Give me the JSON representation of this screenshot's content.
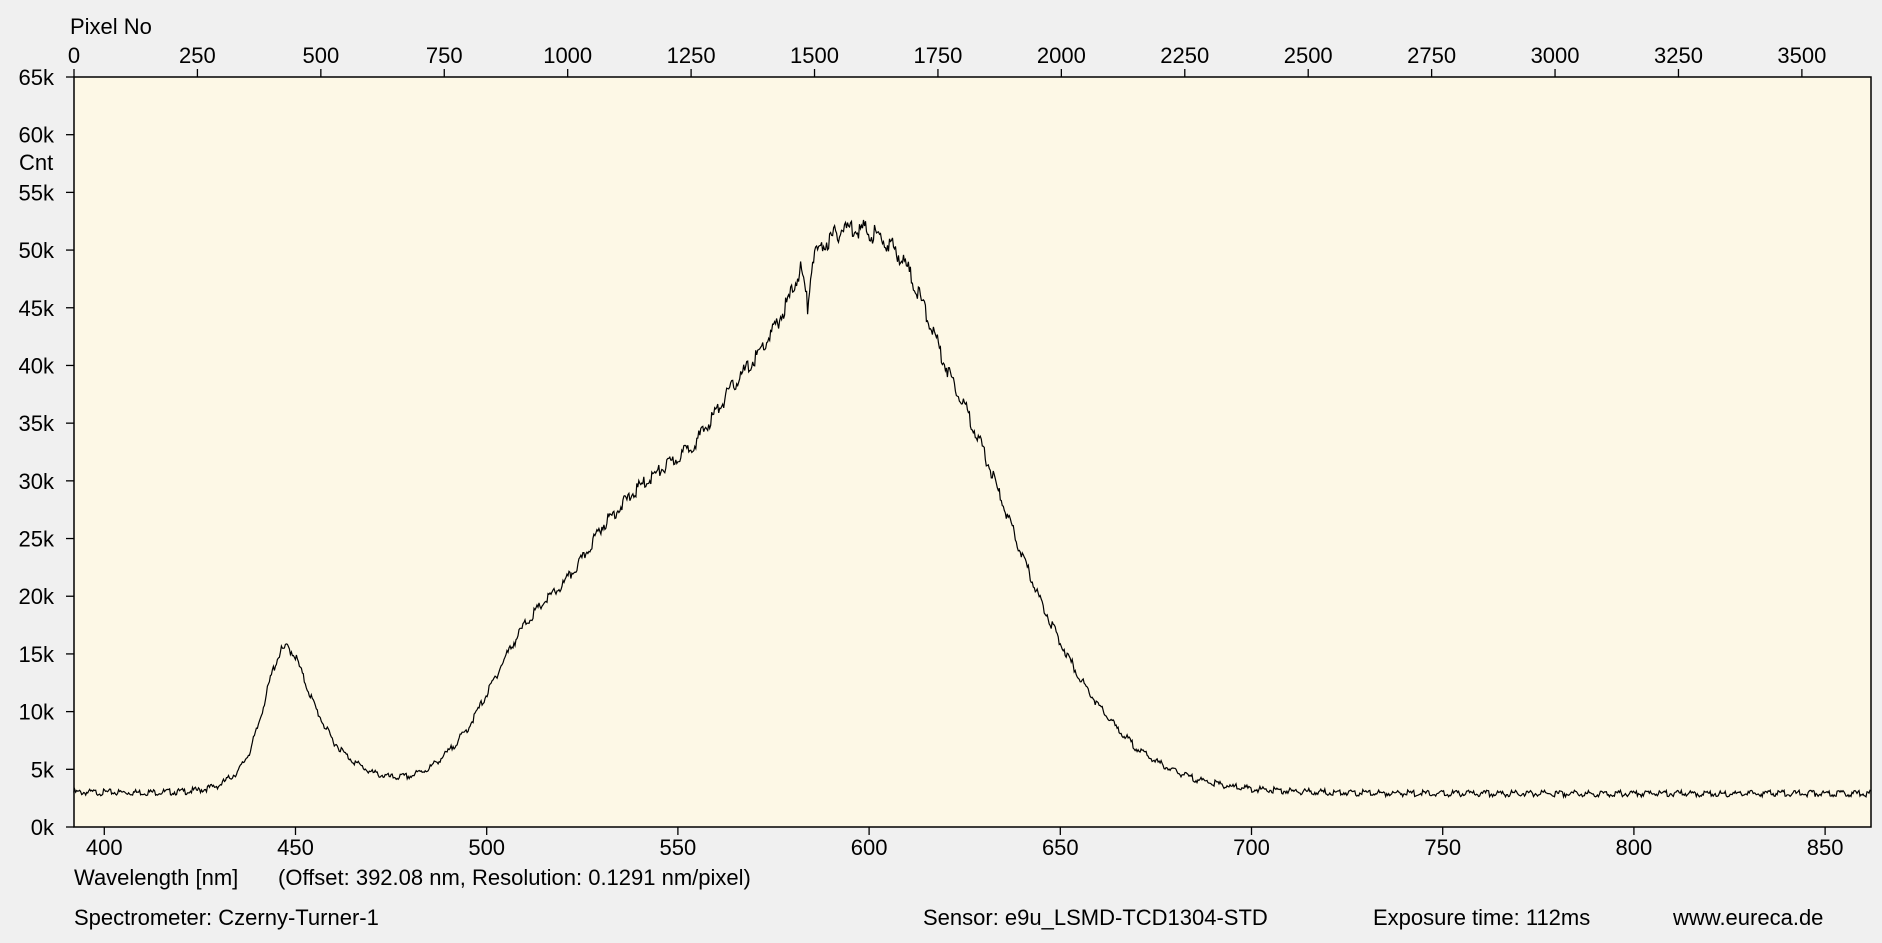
{
  "labels": {
    "top_axis_title": "Pixel No",
    "y_axis_title": "Cnt",
    "x_axis_title": "Wavelength [nm]",
    "x_axis_note": "(Offset: 392.08 nm, Resolution: 0.1291 nm/pixel)",
    "spectrometer": "Spectrometer: Czerny-Turner-1",
    "sensor": "Sensor: e9u_LSMD-TCD1304-STD",
    "exposure": "Exposure time: 112ms",
    "website": "www.eureca.de"
  },
  "colors": {
    "plot_background": "#fdf8e6",
    "page_background": "#f0f0f0",
    "trace": "#000000"
  },
  "chart_data": {
    "type": "line",
    "title": "",
    "xlabel": "Wavelength [nm]",
    "ylabel": "Cnt",
    "x2label": "Pixel No",
    "xlim": [
      392.08,
      862.0
    ],
    "ylim": [
      0,
      65000
    ],
    "x2lim": [
      0,
      3640
    ],
    "grid": false,
    "x_ticks": [
      400,
      450,
      500,
      550,
      600,
      650,
      700,
      750,
      800,
      850
    ],
    "x2_ticks": [
      0,
      250,
      500,
      750,
      1000,
      1250,
      1500,
      1750,
      2000,
      2250,
      2500,
      2750,
      3000,
      3250,
      3500
    ],
    "x2_tick_labels": [
      "0",
      "250",
      "500",
      "750",
      "1000",
      "1250",
      "1500",
      "1750",
      "2000",
      "2250",
      "2500",
      "2750",
      "3000",
      "3250",
      "3500"
    ],
    "y_ticks": [
      0,
      5000,
      10000,
      15000,
      20000,
      25000,
      30000,
      35000,
      40000,
      45000,
      50000,
      55000,
      60000,
      65000
    ],
    "y_tick_labels": [
      "0k",
      "5k",
      "10k",
      "15k",
      "20k",
      "25k",
      "30k",
      "35k",
      "40k",
      "45k",
      "50k",
      "55k",
      "60k",
      "65k"
    ],
    "series": [
      {
        "x": [
          392,
          400,
          410,
          420,
          425,
          430,
          435,
          438,
          440,
          442,
          444,
          446,
          448,
          450,
          452,
          455,
          458,
          460,
          463,
          466,
          470,
          475,
          480,
          485,
          490,
          495,
          500,
          505,
          510,
          515,
          520,
          525,
          530,
          535,
          540,
          545,
          550,
          555,
          560,
          565,
          570,
          575,
          578,
          580,
          582,
          583,
          584,
          585,
          588,
          590,
          593,
          596,
          600,
          604,
          607,
          610,
          615,
          620,
          625,
          630,
          635,
          640,
          645,
          650,
          655,
          660,
          665,
          670,
          675,
          680,
          685,
          690,
          695,
          700,
          705,
          710,
          720,
          730,
          750,
          780,
          800,
          830,
          862
        ],
        "y": [
          3000,
          3000,
          3000,
          3050,
          3200,
          3600,
          4800,
          6500,
          8500,
          11000,
          13500,
          15200,
          15600,
          14800,
          13000,
          10500,
          8500,
          7400,
          6300,
          5500,
          4700,
          4300,
          4400,
          5100,
          6500,
          8500,
          11500,
          14800,
          17600,
          19500,
          21000,
          23200,
          26000,
          27800,
          29500,
          30800,
          32000,
          33500,
          36000,
          38500,
          40500,
          43000,
          45000,
          46500,
          48500,
          47000,
          45000,
          49000,
          50500,
          51000,
          51800,
          52000,
          51600,
          50800,
          50000,
          48500,
          44500,
          40000,
          36500,
          32500,
          28000,
          23500,
          19500,
          16000,
          13000,
          10500,
          8500,
          6800,
          5700,
          4800,
          4200,
          3800,
          3500,
          3300,
          3200,
          3100,
          3000,
          2950,
          2900,
          2900,
          2900,
          2900,
          2900
        ]
      }
    ]
  }
}
